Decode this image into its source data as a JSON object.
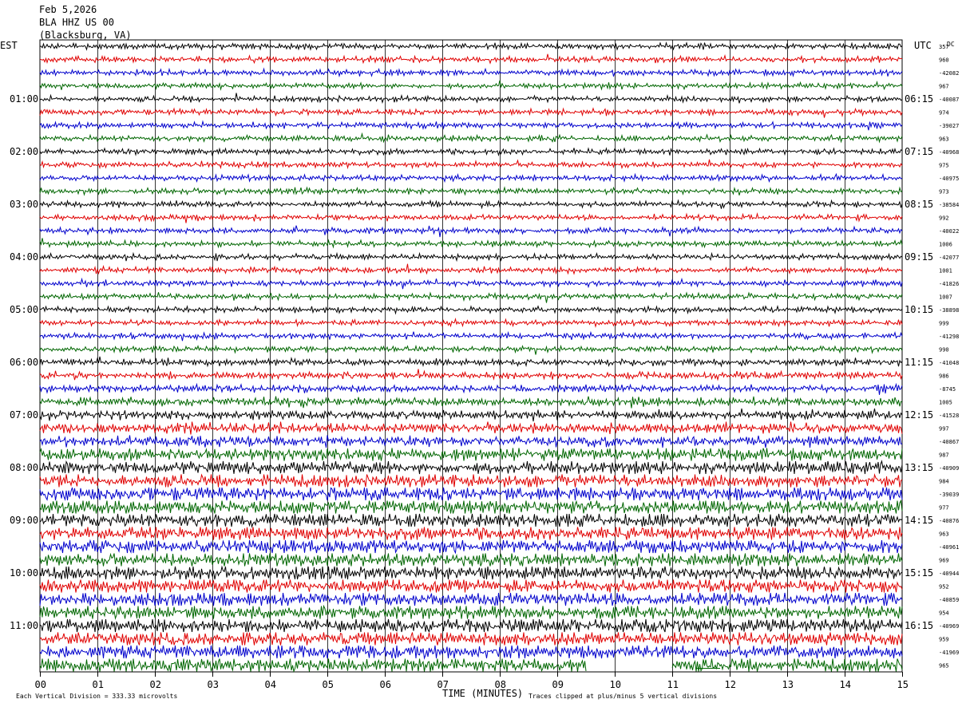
{
  "header": {
    "date": "Feb 5,2026",
    "station": "BLA HHZ US 00",
    "location": "(Blacksburg, VA)"
  },
  "labels": {
    "left_zone": "EST",
    "right_zone": "UTC",
    "dc_header": "DC",
    "xlabel": "TIME (MINUTES)",
    "footer_left": "Each Vertical Division =  333.33 microvolts",
    "footer_right": "Traces clipped at plus/minus 5 vertical divisions"
  },
  "colors": {
    "trace_cycle": [
      "#000000",
      "#e00000",
      "#0000cc",
      "#006600"
    ],
    "grid": "#000000",
    "background": "#ffffff"
  },
  "chart_data": {
    "type": "line",
    "title": "",
    "xlabel": "TIME (MINUTES)",
    "xlim": [
      0,
      15
    ],
    "x_ticks": [
      "00",
      "01",
      "02",
      "03",
      "04",
      "05",
      "06",
      "07",
      "08",
      "09",
      "10",
      "11",
      "12",
      "13",
      "14",
      "15"
    ],
    "left_time_labels": [
      "01:00",
      "02:00",
      "03:00",
      "04:00",
      "05:00",
      "06:00",
      "07:00",
      "08:00",
      "09:00",
      "10:00",
      "11:00"
    ],
    "right_time_labels": [
      "06:15",
      "07:15",
      "08:15",
      "09:15",
      "10:15",
      "11:15",
      "12:15",
      "13:15",
      "14:15",
      "15:15",
      "16:15"
    ],
    "row_count": 48,
    "rows_per_hour": 4,
    "trace_amplitude_by_row": [
      1,
      1,
      1,
      1,
      1,
      1,
      1,
      1,
      1,
      1,
      1,
      1,
      1,
      1,
      1,
      1,
      1,
      1,
      1,
      1,
      1,
      1,
      1,
      1,
      1.2,
      1.2,
      1.3,
      1.5,
      1.5,
      1.8,
      1.8,
      2.2,
      2.4,
      2.4,
      2.5,
      2.5,
      2.5,
      2.5,
      2.5,
      2.5,
      2.5,
      2.5,
      2.5,
      2.5,
      2.6,
      2.6,
      2.6,
      2.6
    ],
    "dc_offsets": [
      "357",
      "960",
      "-42082",
      "967",
      "-40087",
      "974",
      "-39027",
      "963",
      "-40968",
      "975",
      "-40975",
      "973",
      "-38584",
      "992",
      "-40022",
      "1006",
      "-42077",
      "1001",
      "-41826",
      "1007",
      "-38898",
      "999",
      "-41298",
      "990",
      "-41048",
      "986",
      "-8745",
      "1005",
      "-41528",
      "997",
      "-40867",
      "987",
      "-40909",
      "984",
      "-39039",
      "977",
      "-40876",
      "963",
      "-40961",
      "969",
      "-40944",
      "952",
      "-40859",
      "954",
      "-40969",
      "959",
      "-41969",
      "965"
    ],
    "last_row_gap_minutes": [
      9.5,
      11.0
    ]
  }
}
